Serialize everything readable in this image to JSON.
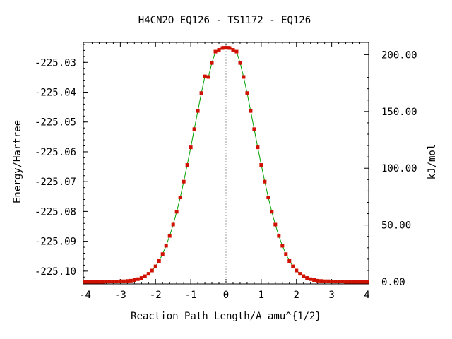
{
  "chart_data": {
    "type": "line",
    "title": "H4CN2O   EQ126 - TS1172 - EQ126",
    "xlabel": "Reaction Path Length/A amu^{1/2}",
    "ylabel": "Energy/Hartree",
    "y2label": "kJ/mol",
    "xlim": [
      -4.05,
      4.05
    ],
    "ylim": [
      -225.1043,
      -225.0233
    ],
    "xticks": [
      -4,
      -3,
      -2,
      -1,
      0,
      1,
      2,
      3,
      4
    ],
    "xtick_labels": [
      "-4",
      "-3",
      "-2",
      "-1",
      "0",
      "1",
      "2",
      "3",
      "4"
    ],
    "yticks": [
      -225.03,
      -225.04,
      -225.05,
      -225.06,
      -225.07,
      -225.08,
      -225.09,
      -225.1
    ],
    "ytick_labels": [
      "-225.03",
      "-225.04",
      "-225.05",
      "-225.06",
      "-225.07",
      "-225.08",
      "-225.09",
      "-225.10"
    ],
    "y2ticks_kjmol": [
      0,
      50,
      100,
      150,
      200
    ],
    "y2tick_labels": [
      "0.00",
      "50.00",
      "100.00",
      "150.00",
      "200.00"
    ],
    "y2_zero_energy": -225.1036,
    "hartree_to_kjmol": 2625.5,
    "ts_x": 0,
    "grid": false,
    "colors": {
      "line": "#00a000",
      "points": "#d01000",
      "ts_marker": "#a0a0a0"
    },
    "series": [
      {
        "x": [
          -4.0,
          -3.9,
          -3.8,
          -3.7,
          -3.6,
          -3.5,
          -3.4,
          -3.3,
          -3.2,
          -3.1,
          -3.0,
          -2.9,
          -2.8,
          -2.7,
          -2.6,
          -2.5,
          -2.4,
          -2.3,
          -2.2,
          -2.1,
          -2.0,
          -1.9,
          -1.8,
          -1.7,
          -1.6,
          -1.5,
          -1.4,
          -1.3,
          -1.2,
          -1.1,
          -1.0,
          -0.9,
          -0.8,
          -0.7,
          -0.6,
          -0.5,
          -0.4,
          -0.3,
          -0.2,
          -0.1,
          -0.05,
          0.0,
          0.05,
          0.1,
          0.2,
          0.3,
          0.4,
          0.5,
          0.6,
          0.7,
          0.8,
          0.9,
          1.0,
          1.1,
          1.2,
          1.3,
          1.4,
          1.5,
          1.6,
          1.7,
          1.8,
          1.9,
          2.0,
          2.1,
          2.2,
          2.3,
          2.4,
          2.5,
          2.6,
          2.7,
          2.8,
          2.9,
          3.0,
          3.1,
          3.2,
          3.3,
          3.4,
          3.5,
          3.6,
          3.7,
          3.8,
          3.9,
          4.0
        ],
        "y": [
          -225.1036,
          -225.1036,
          -225.1036,
          -225.1036,
          -225.1036,
          -225.1036,
          -225.1035,
          -225.1035,
          -225.1035,
          -225.1035,
          -225.1034,
          -225.1034,
          -225.1033,
          -225.1032,
          -225.103,
          -225.1027,
          -225.1023,
          -225.1017,
          -225.1009,
          -225.0998,
          -225.0984,
          -225.0966,
          -225.0943,
          -225.0915,
          -225.0882,
          -225.0844,
          -225.0801,
          -225.0753,
          -225.07,
          -225.0644,
          -225.0585,
          -225.0524,
          -225.0463,
          -225.0403,
          -225.0347,
          -225.0349,
          -225.0302,
          -225.0264,
          -225.0258,
          -225.0252,
          -225.0251,
          -225.0251,
          -225.0251,
          -225.0252,
          -225.0258,
          -225.0264,
          -225.0302,
          -225.0349,
          -225.0403,
          -225.0463,
          -225.0524,
          -225.0585,
          -225.0644,
          -225.07,
          -225.0753,
          -225.0801,
          -225.0844,
          -225.0882,
          -225.0915,
          -225.0943,
          -225.0966,
          -225.0984,
          -225.0998,
          -225.1009,
          -225.1017,
          -225.1023,
          -225.1027,
          -225.103,
          -225.1032,
          -225.1033,
          -225.1034,
          -225.1034,
          -225.1035,
          -225.1035,
          -225.1035,
          -225.1035,
          -225.1036,
          -225.1036,
          -225.1036,
          -225.1036,
          -225.1036,
          -225.1036,
          -225.1036
        ]
      }
    ]
  }
}
